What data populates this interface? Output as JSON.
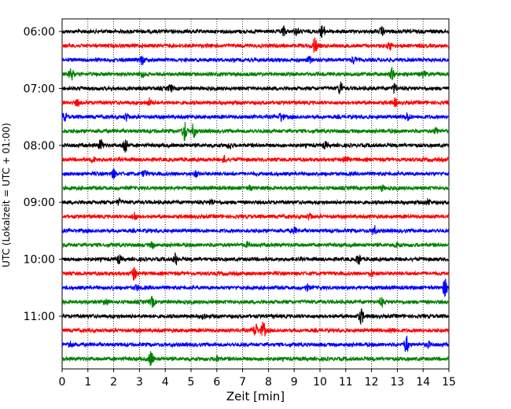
{
  "chart_data": {
    "type": "line",
    "chart_kind": "helicorder",
    "xlabel": "Zeit  [min]",
    "ylabel": "UTC (Lokalzeit = UTC + 01:00)",
    "xlim": [
      0,
      15
    ],
    "x_ticks": [
      0,
      1,
      2,
      3,
      4,
      5,
      6,
      7,
      8,
      9,
      10,
      11,
      12,
      13,
      14,
      15
    ],
    "x_grid": "dotted",
    "trace_interval_min": 15,
    "trace_colors": [
      "#000000",
      "#ff0000",
      "#0000ff",
      "#008000"
    ],
    "y_ticks": [
      {
        "label": "06:00",
        "trace": 0
      },
      {
        "label": "07:00",
        "trace": 4
      },
      {
        "label": "08:00",
        "trace": 8
      },
      {
        "label": "09:00",
        "trace": 12
      },
      {
        "label": "10:00",
        "trace": 16
      },
      {
        "label": "11:00",
        "trace": 20
      }
    ],
    "traces": [
      {
        "start": "06:00",
        "events": [
          [
            8.6,
            1.3
          ],
          [
            9.1,
            1.0
          ],
          [
            10.1,
            1.8
          ],
          [
            12.4,
            1.2
          ]
        ]
      },
      {
        "start": "06:15",
        "events": [
          [
            9.8,
            2.4
          ],
          [
            12.7,
            1.0
          ]
        ]
      },
      {
        "start": "06:30",
        "events": [
          [
            3.1,
            1.2
          ],
          [
            9.6,
            0.8
          ],
          [
            11.3,
            0.9
          ]
        ]
      },
      {
        "start": "06:45",
        "events": [
          [
            0.35,
            1.7
          ],
          [
            3.1,
            1.0
          ],
          [
            12.8,
            1.6
          ],
          [
            14.0,
            1.0
          ]
        ]
      },
      {
        "start": "07:00",
        "events": [
          [
            4.2,
            1.0
          ],
          [
            10.8,
            2.0
          ],
          [
            12.9,
            1.3
          ]
        ]
      },
      {
        "start": "07:15",
        "events": [
          [
            0.6,
            0.8
          ],
          [
            3.4,
            1.1
          ],
          [
            12.9,
            1.0
          ]
        ]
      },
      {
        "start": "07:30",
        "events": [
          [
            0.1,
            1.0
          ],
          [
            2.5,
            1.0
          ],
          [
            8.5,
            1.3
          ],
          [
            13.4,
            1.2
          ]
        ]
      },
      {
        "start": "07:45",
        "events": [
          [
            4.75,
            3.0
          ],
          [
            5.1,
            2.0
          ],
          [
            14.5,
            0.8
          ]
        ]
      },
      {
        "start": "08:00",
        "events": [
          [
            1.5,
            1.6
          ],
          [
            2.45,
            2.6
          ],
          [
            6.5,
            0.9
          ],
          [
            10.2,
            0.7
          ]
        ]
      },
      {
        "start": "08:15",
        "events": [
          [
            1.2,
            0.8
          ],
          [
            6.3,
            0.9
          ],
          [
            11.0,
            1.1
          ]
        ]
      },
      {
        "start": "08:30",
        "events": [
          [
            2.0,
            1.2
          ],
          [
            3.2,
            0.9
          ],
          [
            5.2,
            0.7
          ]
        ]
      },
      {
        "start": "08:45",
        "events": [
          [
            7.3,
            0.7
          ],
          [
            12.4,
            0.7
          ]
        ]
      },
      {
        "start": "09:00",
        "events": [
          [
            2.2,
            0.7
          ],
          [
            5.8,
            0.7
          ],
          [
            14.2,
            0.8
          ]
        ]
      },
      {
        "start": "09:15",
        "events": [
          [
            2.8,
            1.2
          ],
          [
            9.6,
            0.9
          ]
        ]
      },
      {
        "start": "09:30",
        "events": [
          [
            9.0,
            0.9
          ],
          [
            12.1,
            1.3
          ]
        ]
      },
      {
        "start": "09:45",
        "events": [
          [
            3.5,
            0.8
          ],
          [
            7.2,
            0.6
          ],
          [
            13.0,
            0.7
          ]
        ]
      },
      {
        "start": "10:00",
        "events": [
          [
            2.2,
            1.0
          ],
          [
            4.4,
            1.6
          ],
          [
            11.5,
            1.5
          ]
        ]
      },
      {
        "start": "10:15",
        "events": [
          [
            2.8,
            2.0
          ],
          [
            12.0,
            0.7
          ]
        ]
      },
      {
        "start": "10:30",
        "events": [
          [
            2.9,
            0.7
          ],
          [
            9.5,
            0.8
          ],
          [
            14.85,
            2.5
          ]
        ]
      },
      {
        "start": "10:45",
        "events": [
          [
            1.7,
            0.8
          ],
          [
            3.5,
            1.4
          ],
          [
            12.4,
            1.2
          ]
        ]
      },
      {
        "start": "11:00",
        "events": [
          [
            5.5,
            0.9
          ],
          [
            11.6,
            2.2
          ]
        ]
      },
      {
        "start": "11:15",
        "events": [
          [
            7.5,
            1.9
          ],
          [
            7.8,
            2.3
          ],
          [
            12.8,
            0.7
          ]
        ]
      },
      {
        "start": "11:30",
        "events": [
          [
            0.3,
            1.0
          ],
          [
            13.35,
            2.4
          ],
          [
            14.2,
            0.7
          ]
        ]
      },
      {
        "start": "11:45",
        "events": [
          [
            3.45,
            2.2
          ],
          [
            6.0,
            0.7
          ]
        ]
      }
    ]
  }
}
